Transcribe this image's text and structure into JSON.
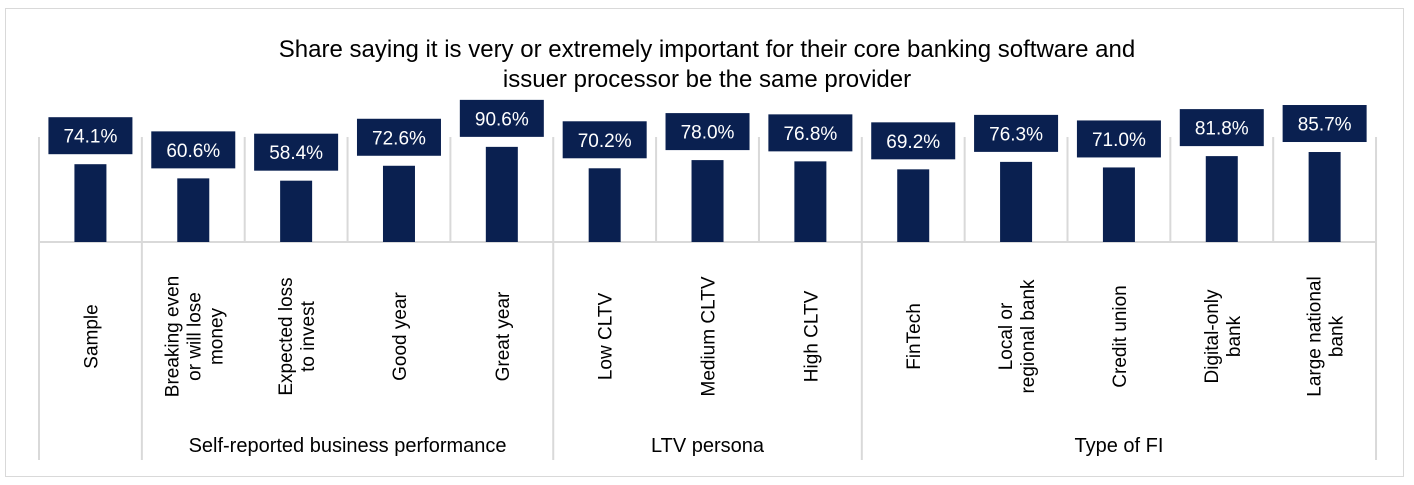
{
  "chart_data": {
    "type": "bar",
    "title": "Share saying it is very or extremely important for their core banking software and issuer processor be the same provider",
    "title_lines": [
      "Share saying it is very or extremely important for their core banking software and",
      "issuer processor be the same provider"
    ],
    "xlabel": "",
    "ylabel": "",
    "ylim": [
      0,
      100
    ],
    "grid": false,
    "legend": "none",
    "bar_color": "#0a2050",
    "label_box_color": "#0a2050",
    "label_text_color": "#ffffff",
    "categories": [
      {
        "label": "Sample",
        "lines": [
          "Sample"
        ],
        "group": ""
      },
      {
        "label": "Breaking even or will lose money",
        "lines": [
          "Breaking even",
          "or will lose",
          "money"
        ],
        "group": "Self-reported business performance"
      },
      {
        "label": "Expected loss to invest",
        "lines": [
          "Expected loss",
          "to invest"
        ],
        "group": "Self-reported business performance"
      },
      {
        "label": "Good year",
        "lines": [
          "Good year"
        ],
        "group": "Self-reported business performance"
      },
      {
        "label": "Great year",
        "lines": [
          "Great year"
        ],
        "group": "Self-reported business performance"
      },
      {
        "label": "Low CLTV",
        "lines": [
          "Low CLTV"
        ],
        "group": "LTV persona"
      },
      {
        "label": "Medium CLTV",
        "lines": [
          "Medium CLTV"
        ],
        "group": "LTV persona"
      },
      {
        "label": "High CLTV",
        "lines": [
          "High CLTV"
        ],
        "group": "LTV persona"
      },
      {
        "label": "FinTech",
        "lines": [
          "FinTech"
        ],
        "group": "Type of FI"
      },
      {
        "label": "Local or regional bank",
        "lines": [
          "Local or",
          "regional bank"
        ],
        "group": "Type of FI"
      },
      {
        "label": "Credit union",
        "lines": [
          "Credit union"
        ],
        "group": "Type of FI"
      },
      {
        "label": "Digital-only bank",
        "lines": [
          "Digital-only",
          "bank"
        ],
        "group": "Type of FI"
      },
      {
        "label": "Large national bank",
        "lines": [
          "Large national",
          "bank"
        ],
        "group": "Type of FI"
      }
    ],
    "values": [
      74.1,
      60.6,
      58.4,
      72.6,
      90.6,
      70.2,
      78.0,
      76.8,
      69.2,
      76.3,
      71.0,
      81.8,
      85.7
    ],
    "data_labels": [
      "74.1%",
      "60.6%",
      "58.4%",
      "72.6%",
      "90.6%",
      "70.2%",
      "78.0%",
      "76.8%",
      "69.2%",
      "76.3%",
      "71.0%",
      "81.8%",
      "85.7%"
    ],
    "groups": [
      {
        "name": "",
        "start": 0,
        "end": 0
      },
      {
        "name": "Self-reported business performance",
        "start": 1,
        "end": 4
      },
      {
        "name": "LTV persona",
        "start": 5,
        "end": 7
      },
      {
        "name": "Type of FI",
        "start": 8,
        "end": 12
      }
    ]
  }
}
